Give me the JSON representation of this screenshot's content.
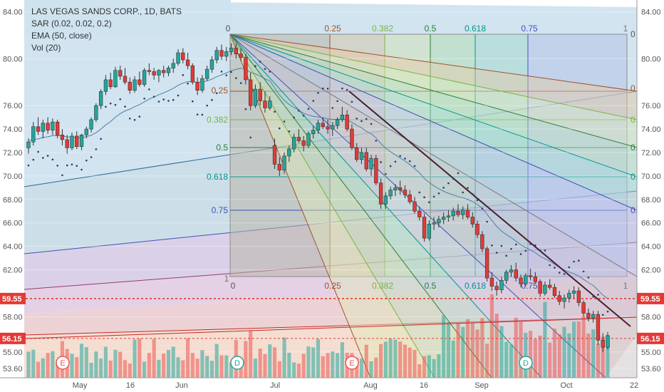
{
  "legend": {
    "title": "LAS VEGAS SANDS CORP., 1D, BATS",
    "sar": "SAR (0.02, 0.02, 0.2)",
    "ema": "EMA (50, close)",
    "vol": "Vol (20)"
  },
  "chart_data": {
    "type": "candlestick",
    "y_ticks": [
      "84.00",
      "80.00",
      "76.00",
      "74.00",
      "72.00",
      "70.00",
      "68.00",
      "66.00",
      "64.00",
      "62.00",
      "58.00",
      "55.00",
      "53.60"
    ],
    "y_range": [
      52.8,
      85.0
    ],
    "x_ticks": [
      "May",
      "16",
      "Jun",
      "Jul",
      "Aug",
      "16",
      "Sep",
      "Oct",
      "22"
    ],
    "price_labels": [
      {
        "value": 59.55,
        "text": "59.55",
        "color": "#e53935"
      },
      {
        "value": 56.15,
        "text": "56.15",
        "color": "#e53935"
      }
    ],
    "fan_levels_top": [
      "0",
      "0.25",
      "0.382",
      "0.5",
      "0.618",
      "0.75",
      "1"
    ],
    "fan_levels_bottom": [
      "0",
      "0.25",
      "0.382",
      "0.5",
      "0.618",
      "0.75",
      "1"
    ],
    "fan_levels_left": [
      "0.25",
      "0.382",
      "0.5",
      "0.618",
      "0.75"
    ],
    "fan_levels_right": [
      "0",
      "0",
      "0.",
      "0.",
      "0.",
      "0."
    ],
    "fan_colors": [
      "#808080",
      "#a0522d",
      "#7cb342",
      "#2e7d32",
      "#009688",
      "#3f51b5",
      "#888888"
    ],
    "event_markers": [
      {
        "label": "E",
        "type": "earnings"
      },
      {
        "label": "D",
        "type": "dividend"
      },
      {
        "label": "E",
        "type": "earnings"
      },
      {
        "label": "D",
        "type": "dividend"
      }
    ],
    "candles": [
      [
        72.4,
        73.2,
        71.9,
        72.9
      ],
      [
        72.9,
        74.6,
        72.6,
        74.2
      ],
      [
        74.2,
        75.0,
        73.5,
        73.8
      ],
      [
        73.8,
        74.8,
        73.2,
        74.5
      ],
      [
        74.5,
        75.0,
        73.6,
        73.9
      ],
      [
        73.9,
        74.9,
        73.5,
        74.6
      ],
      [
        74.6,
        74.8,
        73.2,
        73.5
      ],
      [
        73.5,
        74.0,
        72.6,
        73.1
      ],
      [
        73.1,
        73.5,
        71.9,
        72.4
      ],
      [
        72.4,
        73.7,
        72.2,
        73.4
      ],
      [
        73.4,
        73.8,
        72.3,
        72.5
      ],
      [
        72.5,
        73.6,
        72.2,
        73.5
      ],
      [
        73.5,
        74.2,
        73.2,
        74.0
      ],
      [
        74.0,
        75.0,
        73.7,
        74.8
      ],
      [
        74.8,
        76.2,
        74.6,
        76.0
      ],
      [
        76.0,
        77.4,
        75.7,
        77.2
      ],
      [
        77.2,
        78.6,
        76.9,
        78.2
      ],
      [
        78.2,
        78.8,
        77.4,
        77.6
      ],
      [
        77.6,
        79.3,
        77.5,
        79.0
      ],
      [
        79.0,
        79.4,
        78.2,
        78.5
      ],
      [
        78.5,
        79.2,
        77.8,
        78.0
      ],
      [
        78.0,
        78.4,
        77.0,
        77.3
      ],
      [
        77.3,
        78.5,
        77.1,
        78.2
      ],
      [
        78.2,
        78.9,
        77.6,
        77.8
      ],
      [
        77.8,
        79.2,
        77.6,
        79.0
      ],
      [
        79.0,
        79.6,
        78.6,
        78.9
      ],
      [
        78.9,
        79.2,
        78.2,
        78.6
      ],
      [
        78.6,
        79.1,
        78.0,
        79.0
      ],
      [
        79.0,
        79.4,
        78.4,
        78.8
      ],
      [
        78.8,
        79.4,
        78.5,
        79.2
      ],
      [
        79.2,
        80.0,
        78.8,
        79.6
      ],
      [
        79.6,
        80.8,
        79.4,
        80.5
      ],
      [
        80.5,
        80.9,
        79.6,
        79.9
      ],
      [
        79.9,
        80.5,
        79.1,
        79.4
      ],
      [
        79.4,
        79.6,
        77.8,
        78.0
      ],
      [
        78.0,
        78.4,
        76.9,
        77.3
      ],
      [
        77.3,
        78.6,
        77.1,
        78.3
      ],
      [
        78.3,
        79.4,
        78.1,
        79.1
      ],
      [
        79.1,
        80.2,
        78.8,
        79.9
      ],
      [
        79.9,
        81.0,
        79.6,
        80.7
      ],
      [
        80.7,
        81.2,
        79.9,
        80.2
      ],
      [
        80.2,
        81.0,
        79.8,
        80.6
      ],
      [
        80.6,
        81.3,
        80.3,
        80.9
      ],
      [
        80.9,
        81.3,
        80.0,
        80.4
      ],
      [
        80.4,
        80.9,
        79.8,
        80.1
      ],
      [
        80.1,
        80.4,
        77.8,
        78.2
      ],
      [
        78.2,
        78.8,
        75.6,
        76.0
      ],
      [
        76.0,
        77.8,
        75.8,
        77.4
      ],
      [
        77.4,
        78.0,
        76.0,
        76.4
      ],
      [
        76.4,
        77.2,
        75.4,
        75.8
      ],
      [
        75.8,
        76.8,
        75.6,
        76.4
      ],
      [
        72.6,
        73.2,
        70.6,
        71.0
      ],
      [
        71.0,
        71.6,
        70.0,
        70.5
      ],
      [
        70.5,
        72.0,
        70.2,
        71.7
      ],
      [
        71.7,
        72.6,
        71.2,
        72.3
      ],
      [
        72.3,
        73.6,
        72.0,
        73.3
      ],
      [
        73.3,
        74.0,
        72.8,
        73.0
      ],
      [
        73.0,
        73.4,
        72.1,
        72.6
      ],
      [
        72.6,
        73.8,
        72.4,
        73.6
      ],
      [
        73.6,
        74.3,
        73.2,
        73.9
      ],
      [
        73.9,
        74.8,
        73.6,
        74.5
      ],
      [
        74.5,
        75.0,
        74.0,
        74.2
      ],
      [
        74.2,
        74.8,
        73.6,
        74.0
      ],
      [
        74.0,
        74.6,
        73.4,
        74.3
      ],
      [
        74.3,
        75.0,
        74.0,
        74.8
      ],
      [
        74.8,
        75.9,
        74.6,
        75.2
      ],
      [
        75.2,
        75.6,
        73.8,
        74.0
      ],
      [
        74.0,
        74.4,
        72.2,
        72.4
      ],
      [
        72.4,
        72.8,
        71.2,
        71.4
      ],
      [
        71.4,
        72.4,
        71.0,
        72.0
      ],
      [
        72.0,
        72.4,
        70.4,
        70.6
      ],
      [
        70.6,
        71.8,
        70.0,
        71.5
      ],
      [
        71.5,
        71.8,
        69.2,
        69.4
      ],
      [
        69.4,
        69.8,
        67.2,
        67.6
      ],
      [
        67.6,
        68.6,
        67.2,
        68.3
      ],
      [
        68.3,
        69.1,
        68.0,
        68.8
      ],
      [
        68.8,
        69.3,
        68.3,
        69.0
      ],
      [
        69.0,
        69.6,
        68.4,
        68.8
      ],
      [
        68.8,
        69.2,
        68.1,
        68.4
      ],
      [
        68.4,
        68.8,
        67.6,
        67.8
      ],
      [
        67.8,
        68.2,
        66.8,
        67.0
      ],
      [
        67.0,
        67.4,
        66.2,
        66.5
      ],
      [
        66.5,
        66.8,
        64.4,
        64.7
      ],
      [
        64.7,
        66.2,
        64.5,
        65.9
      ],
      [
        65.9,
        66.5,
        65.4,
        66.0
      ],
      [
        66.0,
        66.6,
        65.6,
        66.3
      ],
      [
        66.3,
        66.9,
        65.9,
        66.5
      ],
      [
        66.5,
        67.1,
        66.1,
        66.6
      ],
      [
        66.6,
        67.3,
        66.2,
        67.0
      ],
      [
        67.0,
        67.6,
        66.5,
        66.7
      ],
      [
        66.7,
        67.4,
        66.3,
        67.1
      ],
      [
        67.1,
        67.6,
        66.3,
        66.5
      ],
      [
        66.5,
        66.9,
        65.6,
        65.9
      ],
      [
        65.9,
        66.2,
        64.7,
        65.0
      ],
      [
        65.0,
        65.3,
        63.5,
        63.8
      ],
      [
        63.8,
        64.0,
        61.0,
        61.3
      ],
      [
        61.3,
        61.8,
        60.2,
        60.6
      ],
      [
        60.6,
        61.0,
        59.8,
        60.3
      ],
      [
        60.3,
        61.4,
        60.0,
        61.1
      ],
      [
        61.1,
        62.0,
        60.8,
        61.8
      ],
      [
        61.8,
        62.4,
        61.4,
        62.0
      ],
      [
        62.0,
        62.6,
        61.0,
        61.3
      ],
      [
        61.3,
        61.6,
        60.5,
        60.8
      ],
      [
        60.8,
        61.7,
        60.6,
        61.5
      ],
      [
        61.5,
        62.1,
        61.1,
        61.4
      ],
      [
        61.4,
        61.8,
        60.8,
        61.0
      ],
      [
        61.0,
        61.2,
        59.7,
        60.0
      ],
      [
        60.0,
        61.0,
        59.8,
        60.7
      ],
      [
        60.7,
        61.2,
        60.3,
        60.5
      ],
      [
        60.5,
        60.8,
        59.6,
        59.8
      ],
      [
        59.8,
        60.2,
        59.0,
        59.3
      ],
      [
        59.3,
        59.9,
        58.7,
        59.6
      ],
      [
        59.6,
        60.3,
        59.2,
        60.0
      ],
      [
        60.0,
        60.6,
        59.6,
        60.2
      ],
      [
        60.2,
        60.5,
        58.9,
        59.2
      ],
      [
        59.2,
        59.4,
        58.0,
        58.3
      ],
      [
        58.3,
        58.7,
        57.6,
        57.9
      ],
      [
        57.9,
        58.5,
        57.5,
        58.2
      ],
      [
        58.2,
        58.5,
        55.6,
        56.0
      ],
      [
        56.0,
        56.6,
        55.0,
        55.4
      ],
      [
        55.4,
        56.7,
        55.2,
        56.4
      ]
    ]
  }
}
